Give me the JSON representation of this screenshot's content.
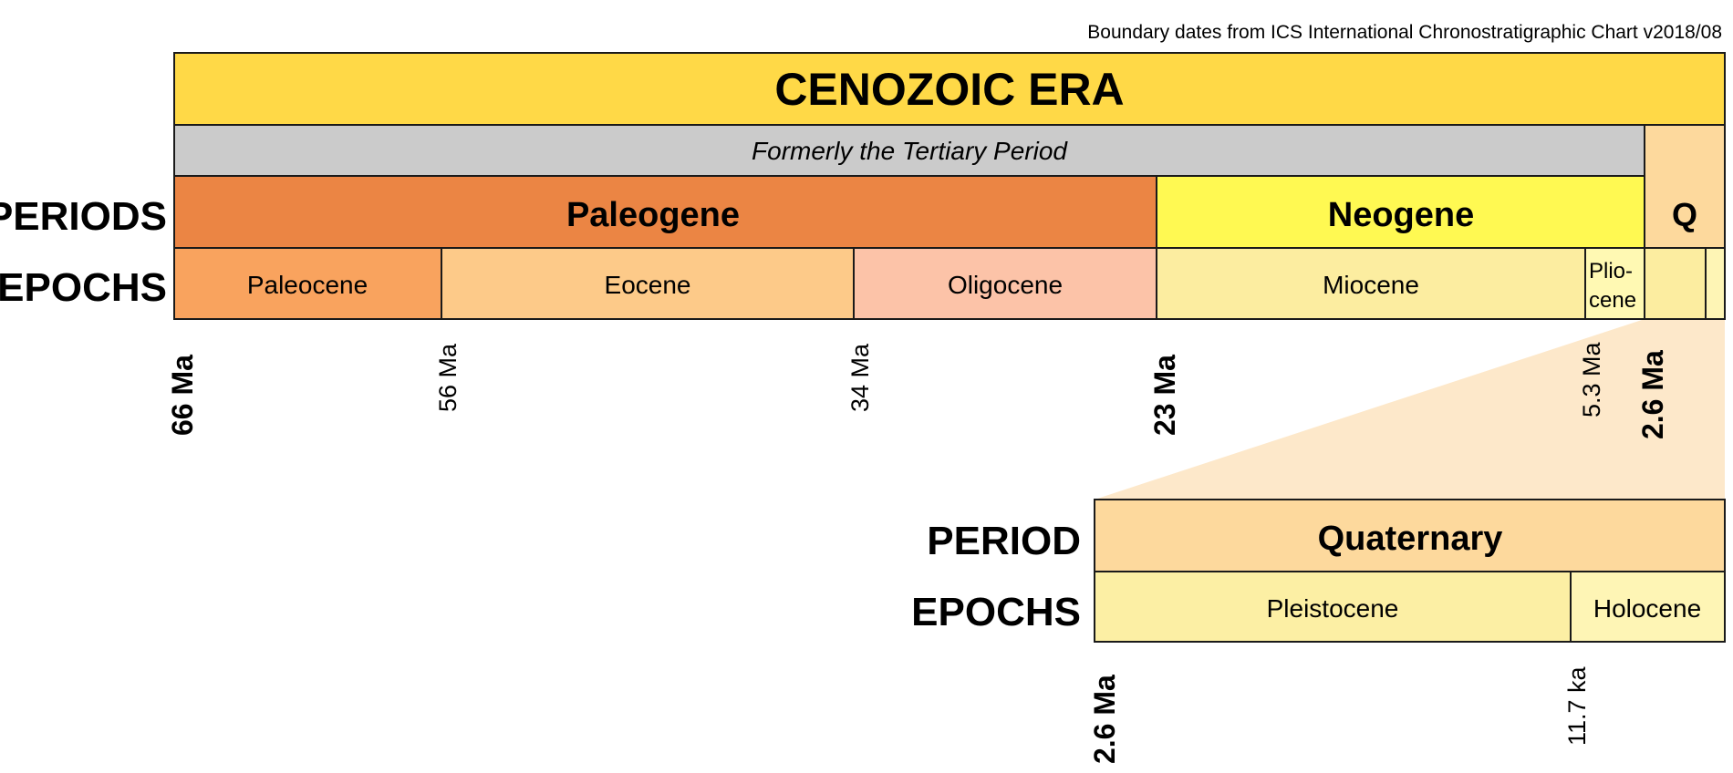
{
  "source_note": "Boundary dates from ICS International Chronostratigraphic Chart v2018/08",
  "era": {
    "label": "CENOZOIC ERA",
    "color": "#FFD947"
  },
  "tertiary": {
    "label": "Formerly the Tertiary Period",
    "color": "#CBCBCB"
  },
  "row_labels": {
    "periods": "PERIODS",
    "epochs": "EPOCHS",
    "period": "PERIOD",
    "epochs_lower": "EPOCHS"
  },
  "periods": [
    {
      "label": "Paleogene",
      "color": "#EB8544"
    },
    {
      "label": "Neogene",
      "color": "#FFF952"
    },
    {
      "label": "Q",
      "color": "#FDD99D"
    }
  ],
  "epochs": [
    {
      "label": "Paleocene",
      "color": "#F9A35E"
    },
    {
      "label": "Eocene",
      "color": "#FDCA89"
    },
    {
      "label": "Oligocene",
      "color": "#FCC3A8"
    },
    {
      "label": "Miocene",
      "color": "#FCEDA0"
    },
    {
      "label_line1": "Plio-",
      "label_line2": "cene",
      "color": "#FFF9B3"
    },
    {
      "label": "",
      "color": "#FCEDA0"
    },
    {
      "label": "",
      "color": "#FEF5B5"
    }
  ],
  "boundaries": [
    "66 Ma",
    "56 Ma",
    "34 Ma",
    "23 Ma",
    "5.3 Ma",
    "2.6 Ma"
  ],
  "zoom_fill": "#FDE8CA",
  "quaternary": {
    "period": {
      "label": "Quaternary",
      "color": "#FDD99D"
    },
    "epochs": [
      {
        "label": "Pleistocene",
        "color": "#FCEFA4"
      },
      {
        "label": "Holocene",
        "color": "#FEF5B5"
      }
    ],
    "boundaries": [
      "2.6 Ma",
      "11.7 ka"
    ]
  }
}
